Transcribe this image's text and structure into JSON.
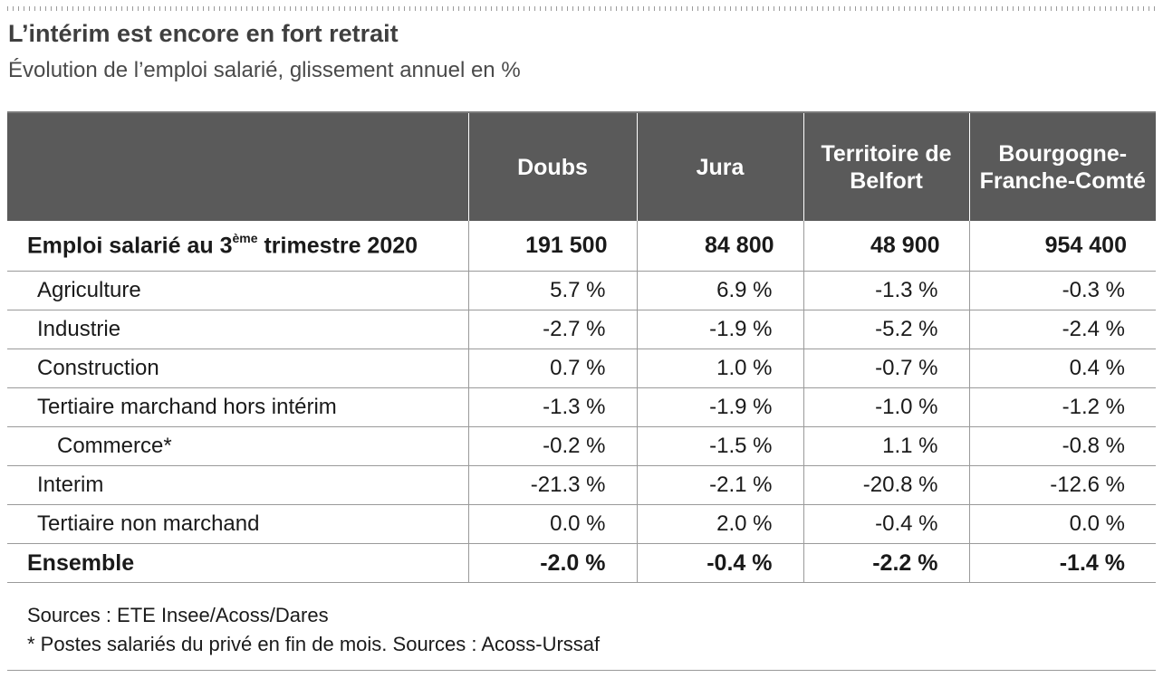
{
  "title": "L’intérim est encore en fort retrait",
  "subtitle": "Évolution de l’emploi salarié, glissement annuel en %",
  "table": {
    "columns": [
      "",
      "Doubs",
      "Jura",
      "Territoire de Belfort",
      "Bourgogne-Franche-Comté"
    ],
    "header_lines": {
      "col3_line1": "Territoire de",
      "col3_line2": "Belfort",
      "col4_line1": "Bourgogne-",
      "col4_line2": "Franche-Comté"
    },
    "employment_row": {
      "label_before": "Emploi salarié au 3",
      "label_sup": "ème",
      "label_after": " trimestre 2020",
      "values": [
        "191 500",
        "84 800",
        "48 900",
        "954 400"
      ]
    },
    "rows": [
      {
        "label": "Agriculture",
        "values": [
          "5.7 %",
          "6.9 %",
          "-1.3 %",
          "-0.3 %"
        ]
      },
      {
        "label": "Industrie",
        "values": [
          "-2.7 %",
          "-1.9 %",
          "-5.2 %",
          "-2.4 %"
        ]
      },
      {
        "label": "Construction",
        "values": [
          "0.7 %",
          "1.0 %",
          "-0.7 %",
          "0.4 %"
        ]
      },
      {
        "label": "Tertiaire marchand hors intérim",
        "values": [
          "-1.3 %",
          "-1.9 %",
          "-1.0 %",
          "-1.2 %"
        ]
      },
      {
        "label": "Commerce*",
        "values": [
          "-0.2 %",
          "-1.5 %",
          "1.1 %",
          "-0.8 %"
        ]
      },
      {
        "label": "Interim",
        "values": [
          "-21.3 %",
          "-2.1 %",
          "-20.8 %",
          "-12.6 %"
        ]
      },
      {
        "label": "Tertiaire non marchand",
        "values": [
          "0.0 %",
          "2.0 %",
          "-0.4 %",
          "0.0 %"
        ]
      }
    ],
    "total_row": {
      "label": "Ensemble",
      "values": [
        "-2.0 %",
        "-0.4 %",
        "-2.2 %",
        "-1.4 %"
      ]
    }
  },
  "notes": {
    "sources": "Sources : ETE Insee/Acoss/Dares",
    "footnote": "* Postes salariés du privé en fin de mois. Sources : Acoss-Urssaf"
  }
}
